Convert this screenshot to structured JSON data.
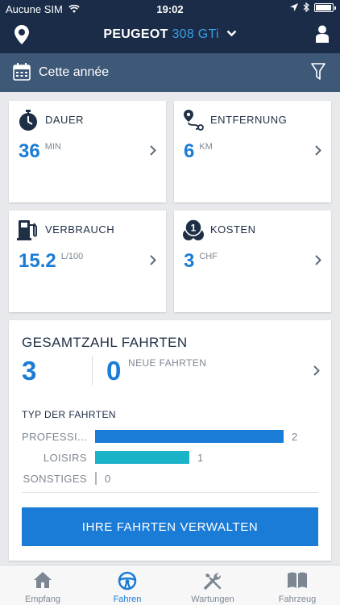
{
  "status_bar": {
    "carrier": "Aucune SIM",
    "time": "19:02"
  },
  "header": {
    "brand": "PEUGEOT",
    "model": "308 GTi"
  },
  "filter": {
    "period": "Cette année"
  },
  "cards": {
    "dauer": {
      "title": "DAUER",
      "value": "36",
      "unit": "MIN"
    },
    "entfernung": {
      "title": "ENTFERNUNG",
      "value": "6",
      "unit": "KM"
    },
    "verbrauch": {
      "title": "VERBRAUCH",
      "value": "15.2",
      "unit": "L/100"
    },
    "kosten": {
      "title": "KOSTEN",
      "value": "3",
      "unit": "CHF",
      "icon_badge": "1"
    }
  },
  "trips": {
    "title": "GESAMTZAHL FAHRTEN",
    "total": "3",
    "new_count": "0",
    "new_label": "NEUE FAHRTEN",
    "type_title": "TYP DER FAHRTEN",
    "types": [
      {
        "label": "PROFESSI...",
        "count": 2,
        "color": "#1a7cd6"
      },
      {
        "label": "LOISIRS",
        "count": 1,
        "color": "#1ab3c8"
      },
      {
        "label": "SONSTIGES",
        "count": 0,
        "color": "#b0b6bd"
      }
    ],
    "manage_button": "IHRE FAHRTEN VERWALTEN"
  },
  "tabbar": {
    "items": [
      {
        "label": "Empfang",
        "icon": "home-icon",
        "active": false
      },
      {
        "label": "Fahren",
        "icon": "steering-wheel-icon",
        "active": true
      },
      {
        "label": "Wartungen",
        "icon": "tools-icon",
        "active": false
      },
      {
        "label": "Fahrzeug",
        "icon": "book-icon",
        "active": false
      }
    ]
  },
  "colors": {
    "header": "#1a2c47",
    "filter_bar": "#3e5878",
    "accent": "#1a7cd6",
    "leisure": "#1ab3c8"
  }
}
